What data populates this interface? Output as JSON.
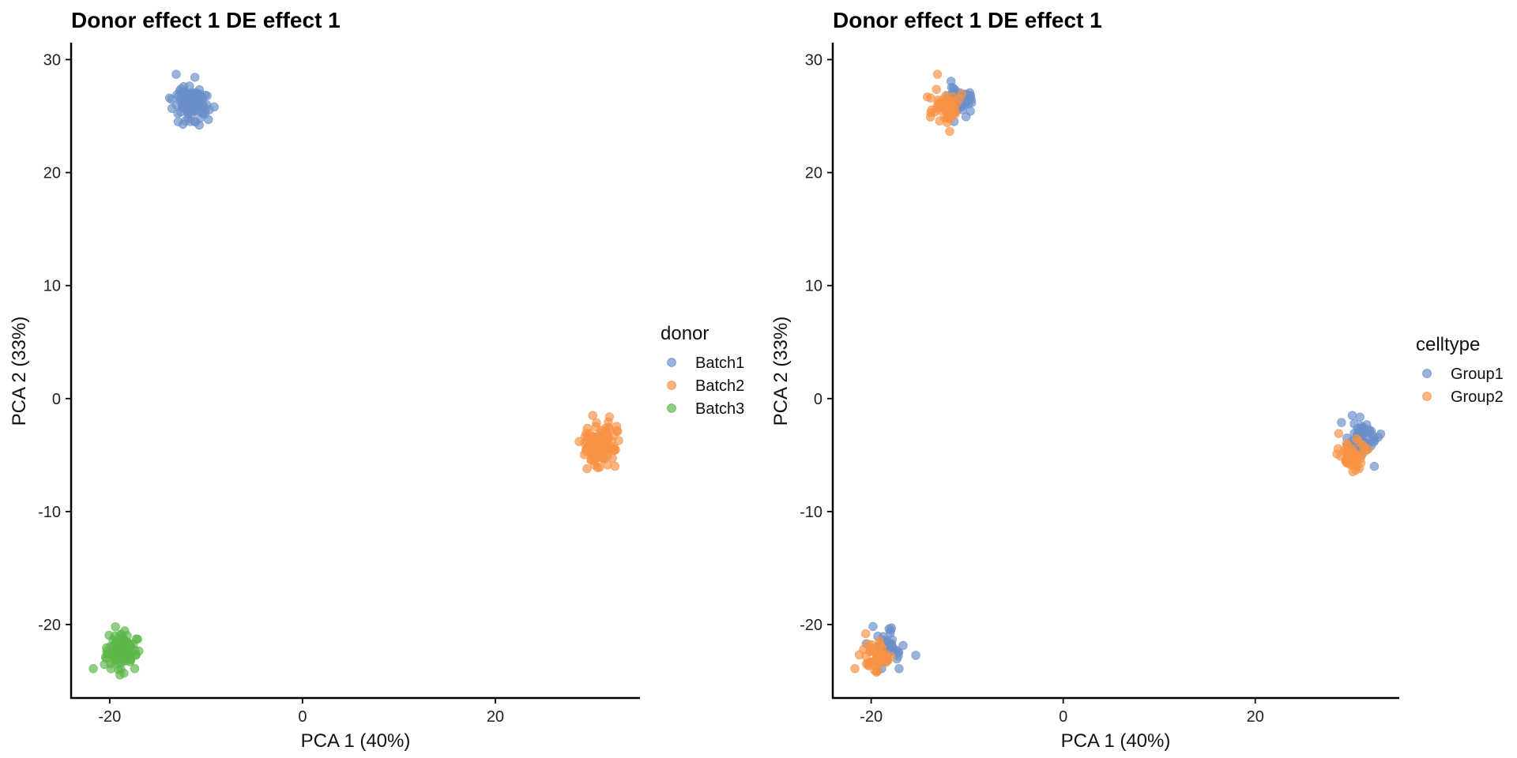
{
  "chart_data": [
    {
      "type": "scatter",
      "title": "Donor effect 1 DE effect 1",
      "xlabel": "PCA 1 (40%)",
      "ylabel": "PCA 2 (33%)",
      "xlim": [
        -24,
        35
      ],
      "ylim": [
        -26.5,
        31.5
      ],
      "xticks": [
        -20,
        0,
        20
      ],
      "yticks": [
        -20,
        -10,
        0,
        10,
        20,
        30
      ],
      "legend": {
        "title": "donor",
        "position": "right"
      },
      "series": [
        {
          "name": "Batch1",
          "color": "#6a8fc9",
          "clusters": [
            {
              "cx": -11.5,
              "cy": 26.2,
              "sx": 0.8,
              "sy": 0.75,
              "n": 110
            }
          ],
          "outliers": [
            [
              -13.1,
              28.7
            ],
            [
              -13.8,
              26.6
            ],
            [
              -12.9,
              24.5
            ],
            [
              -9.9,
              26.8
            ]
          ]
        },
        {
          "name": "Batch2",
          "color": "#f89244",
          "clusters": [
            {
              "cx": 30.8,
              "cy": -4.2,
              "sx": 0.8,
              "sy": 0.85,
              "n": 110
            }
          ],
          "outliers": [
            [
              30.1,
              -1.5
            ],
            [
              28.7,
              -3.8
            ],
            [
              32.4,
              -6.0
            ],
            [
              29.5,
              -6.2
            ]
          ]
        },
        {
          "name": "Batch3",
          "color": "#5db74a",
          "clusters": [
            {
              "cx": -18.9,
              "cy": -22.3,
              "sx": 0.75,
              "sy": 0.75,
              "n": 110
            }
          ],
          "outliers": [
            [
              -21.7,
              -23.9
            ],
            [
              -17.4,
              -23.9
            ],
            [
              -19.4,
              -20.2
            ],
            [
              -17.1,
              -21.3
            ]
          ]
        }
      ]
    },
    {
      "type": "scatter",
      "title": "Donor effect 1 DE effect 1",
      "xlabel": "PCA 1 (40%)",
      "ylabel": "PCA 2 (33%)",
      "xlim": [
        -24,
        35
      ],
      "ylim": [
        -26.5,
        31.5
      ],
      "xticks": [
        -20,
        0,
        20
      ],
      "yticks": [
        -20,
        -10,
        0,
        10,
        20,
        30
      ],
      "legend": {
        "title": "celltype",
        "position": "right"
      },
      "series": [
        {
          "name": "Group1",
          "color": "#6a8fc9",
          "clusters": [
            {
              "cx": -10.9,
              "cy": 26.4,
              "sx": 0.7,
              "sy": 0.8,
              "n": 55
            },
            {
              "cx": 31.2,
              "cy": -3.6,
              "sx": 0.9,
              "sy": 0.75,
              "n": 55
            },
            {
              "cx": -18.6,
              "cy": -22.1,
              "sx": 0.8,
              "sy": 0.75,
              "n": 55
            }
          ],
          "outliers": [
            [
              -9.9,
              26.8
            ],
            [
              30.1,
              -1.5
            ],
            [
              -17.1,
              -23.9
            ],
            [
              32.4,
              -6.0
            ]
          ]
        },
        {
          "name": "Group2",
          "color": "#f89244",
          "clusters": [
            {
              "cx": -12.3,
              "cy": 25.8,
              "sx": 0.7,
              "sy": 0.8,
              "n": 55
            },
            {
              "cx": 30.2,
              "cy": -5.1,
              "sx": 0.7,
              "sy": 0.55,
              "n": 55
            },
            {
              "cx": -19.4,
              "cy": -22.8,
              "sx": 0.7,
              "sy": 0.7,
              "n": 55
            }
          ],
          "outliers": [
            [
              -13.1,
              28.7
            ],
            [
              -21.7,
              -23.9
            ],
            [
              28.7,
              -3.1
            ],
            [
              -13.8,
              26.6
            ]
          ]
        }
      ]
    }
  ]
}
